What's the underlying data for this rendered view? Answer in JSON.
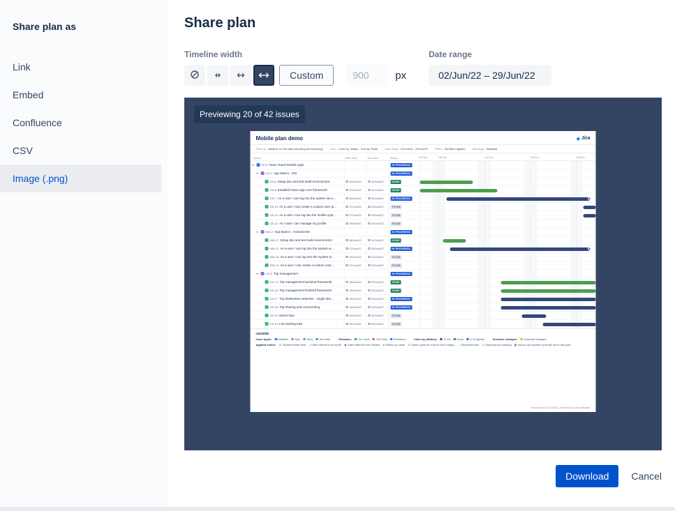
{
  "colors": {
    "accent": "#0052cc",
    "preview_background": "#344563",
    "sidebar_selected_text": "#0052cc"
  },
  "sidebar": {
    "title": "Share plan as",
    "items": [
      {
        "label": "Link",
        "selected": false
      },
      {
        "label": "Embed",
        "selected": false
      },
      {
        "label": "Confluence",
        "selected": false
      },
      {
        "label": "CSV",
        "selected": false
      },
      {
        "label": "Image (.png)",
        "selected": true
      }
    ]
  },
  "header": {
    "title": "Share plan"
  },
  "controls": {
    "timeline_width": {
      "label": "Timeline width",
      "options": [
        "no-width",
        "small-width",
        "medium-width",
        "large-width"
      ],
      "selected_index": 3,
      "custom_label": "Custom",
      "width_placeholder": "900",
      "unit": "px"
    },
    "date_range": {
      "label": "Date range",
      "value": "02/Jun/22 – 29/Jun/22"
    }
  },
  "preview": {
    "badge": "Previewing 20 of 42 issues"
  },
  "plan": {
    "title": "Mobile plan demo",
    "brand": "Jira",
    "meta": [
      {
        "label": "Filter by:",
        "value": "Initiative to Sub-task (Showing full hierarchy)"
      },
      {
        "label": "View:",
        "value": "Color by: Status · Sort by: Rank"
      },
      {
        "label": "Date range:",
        "value": "02/Jun/22 - 29/Jun/22"
      },
      {
        "label": "Filters:",
        "value": "No filters applied"
      },
      {
        "label": "Warnings:",
        "value": "Disabled"
      }
    ],
    "columns": [
      "Scope",
      "Start date",
      "Due date",
      "Status"
    ],
    "ticks": [
      {
        "t": "02/Jun",
        "p": 0
      },
      {
        "t": "05/Jun",
        "p": 11
      },
      {
        "t": "12/Jun",
        "p": 37
      },
      {
        "t": "19/Jun",
        "p": 63
      },
      {
        "t": "26/Jun",
        "p": 89
      }
    ],
    "colors": {
      "bar_done": "#4d9e50",
      "bar_progress": "#33477b",
      "chip_done": "#1f845a",
      "chip_progress": "#1d5bd6",
      "chip_todo_bg": "#dfe1e6",
      "chip_todo_text": "#44546f",
      "type_initiative": "#2684ff",
      "type_epic": "#8777d9",
      "type_story": "#36b37e"
    },
    "rows": [
      {
        "lvl": 0,
        "exp": true,
        "type": "#2684ff",
        "key": "SP-8",
        "sum": "Team Travel Mobile Apps",
        "start": "",
        "due": "",
        "status": "IN PROGRESS",
        "bar": null
      },
      {
        "lvl": 1,
        "exp": true,
        "type": "#8777d9",
        "key": "GS-4",
        "sum": "App basics - iOS",
        "start": "",
        "due": "",
        "status": "IN PROGRESS",
        "bar": null
      },
      {
        "lvl": 2,
        "exp": false,
        "type": "#36b37e",
        "key": "GS-6",
        "sum": "Setup dev and test build environment",
        "start": "02/Jun/22",
        "due": "10/Jun/22",
        "status": "DONE",
        "bar": {
          "s": 0,
          "w": 30,
          "c": "green"
        }
      },
      {
        "lvl": 2,
        "exp": false,
        "type": "#36b37e",
        "key": "GS-8",
        "sum": "Establish basic app core framework",
        "start": "02/Jun/22",
        "due": "14/Jun/22",
        "status": "DONE",
        "bar": {
          "s": 0,
          "w": 44,
          "c": "green"
        }
      },
      {
        "lvl": 2,
        "exp": false,
        "type": "#36b37e",
        "key": "GS-7",
        "sum": "As a user I can log into the system via e...",
        "start": "06/Jun/22",
        "due": "28/Jun/22",
        "status": "IN PROGRESS",
        "bar": {
          "s": 15,
          "w": 82,
          "c": "navy",
          "d": true
        }
      },
      {
        "lvl": 2,
        "exp": false,
        "type": "#36b37e",
        "key": "GS-15",
        "sum": "As a user I can create a custom user pr...",
        "start": "27/Jun/22",
        "due": "29/Jun/22",
        "status": "TO DO",
        "bar": {
          "s": 93,
          "w": 7,
          "c": "navy"
        }
      },
      {
        "lvl": 2,
        "exp": false,
        "type": "#36b37e",
        "key": "GS-10",
        "sum": "As a user I can log into the mobile syst...",
        "start": "27/Jun/22",
        "due": "29/Jun/22",
        "status": "TO DO",
        "bar": {
          "s": 93,
          "w": 7,
          "c": "navy"
        }
      },
      {
        "lvl": 2,
        "exp": false,
        "type": "#36b37e",
        "key": "GS-12",
        "sum": "As I user I can manage my profile",
        "start": "29/Jun/22",
        "due": "29/Jun/22",
        "status": "TO DO",
        "bar": null
      },
      {
        "lvl": 1,
        "exp": true,
        "type": "#8777d9",
        "key": "K06-2",
        "sum": "App Basics - Android test",
        "start": "",
        "due": "",
        "status": "IN PROGRESS",
        "bar": null
      },
      {
        "lvl": 2,
        "exp": false,
        "type": "#36b37e",
        "key": "K06-17",
        "sum": "Setup dev and test build environment",
        "start": "06/Jun/22",
        "due": "10/Jun/22",
        "status": "DONE",
        "bar": {
          "s": 13,
          "w": 13,
          "c": "green"
        }
      },
      {
        "lvl": 2,
        "exp": false,
        "type": "#36b37e",
        "key": "K06-11",
        "sum": "As a user I can log into the system w...",
        "start": "07/Jun/22",
        "due": "28/Jun/22",
        "status": "IN PROGRESS",
        "bar": {
          "s": 17,
          "w": 80,
          "c": "navy",
          "d": true
        }
      },
      {
        "lvl": 2,
        "exp": false,
        "type": "#36b37e",
        "key": "K06-16",
        "sum": "As a user I can log into the system w...",
        "start": "15/Jun/22",
        "due": "22/Jun/22",
        "status": "TO DO",
        "bar": null
      },
      {
        "lvl": 2,
        "exp": false,
        "type": "#36b37e",
        "key": "K06-14",
        "sum": "As a user I can create a custom user...",
        "start": "27/Jun/22",
        "due": "29/Jun/22",
        "status": "TO DO",
        "bar": null
      },
      {
        "lvl": 1,
        "exp": true,
        "type": "#8777d9",
        "key": "GS-5",
        "sum": "Trip management",
        "start": "",
        "due": "",
        "status": "IN PROGRESS",
        "bar": null
      },
      {
        "lvl": 2,
        "exp": false,
        "type": "#36b37e",
        "key": "GS-14",
        "sum": "Trip management backend framework",
        "start": "16/Jun/22",
        "due": "29/Jun/22",
        "status": "DONE",
        "bar": {
          "s": 46,
          "w": 54,
          "c": "green"
        }
      },
      {
        "lvl": 2,
        "exp": false,
        "type": "#36b37e",
        "key": "GS-18",
        "sum": "Trip management frontend framework",
        "start": "16/Jun/22",
        "due": "29/Jun/22",
        "status": "DONE",
        "bar": {
          "s": 46,
          "w": 54,
          "c": "green"
        }
      },
      {
        "lvl": 2,
        "exp": false,
        "type": "#36b37e",
        "key": "GS-17",
        "sum": "Trip destination selection - single des...",
        "start": "16/Jun/22",
        "due": "29/Jun/22",
        "status": "IN PROGRESS",
        "bar": {
          "s": 46,
          "w": 54,
          "c": "navy"
        }
      },
      {
        "lvl": 2,
        "exp": false,
        "type": "#36b37e",
        "key": "GS-20",
        "sum": "Trip sharing and commenting",
        "start": "16/Jun/22",
        "due": "29/Jun/22",
        "status": "IN PROGRESS",
        "bar": {
          "s": 46,
          "w": 54,
          "c": "navy"
        }
      },
      {
        "lvl": 2,
        "exp": false,
        "type": "#36b37e",
        "key": "GS-22",
        "sum": "Name trips",
        "start": "20/Jun/22",
        "due": "24/Jun/22",
        "status": "TO DO",
        "bar": {
          "s": 58,
          "w": 14,
          "c": "navy"
        }
      },
      {
        "lvl": 2,
        "exp": false,
        "type": "#36b37e",
        "key": "GS-19",
        "sum": "List existing trips",
        "start": "24/Jun/22",
        "due": "29/Jun/22",
        "status": "TO DO",
        "bar": {
          "s": 70,
          "w": 30,
          "c": "navy"
        }
      }
    ],
    "legend": {
      "title": "LEGEND",
      "groups": [
        {
          "label": "Issue types:",
          "items": [
            {
              "t": "Initiative",
              "c": "#2684ff",
              "s": "sq"
            },
            {
              "t": "Epic",
              "c": "#8777d9",
              "s": "sq"
            },
            {
              "t": "Story",
              "c": "#36b37e",
              "s": "sq"
            },
            {
              "t": "Sub-task",
              "c": "#00a3bf",
              "s": "sq"
            }
          ]
        },
        {
          "label": "Releases:",
          "items": [
            {
              "t": "On-Track",
              "c": "#36b37e",
              "s": "ci"
            },
            {
              "t": "Off-Track",
              "c": "#de350b",
              "s": "ci"
            },
            {
              "t": "Released",
              "c": "#2684ff",
              "s": "ci"
            }
          ]
        },
        {
          "label": "Color by (Status):",
          "items": [
            {
              "t": "To Do",
              "c": "#344563",
              "s": "sq"
            },
            {
              "t": "Done",
              "c": "#4d9e50",
              "s": "sq"
            },
            {
              "t": "In Progress",
              "c": "#2f62c4",
              "s": "sq"
            }
          ]
        },
        {
          "label": "Scenario changes:",
          "items": [
            {
              "t": "Unsaved changes",
              "c": "#ffab00",
              "s": "sq"
            }
          ]
        },
        {
          "label": "Applied colors:",
          "items": [
            {
              "t": "Start/end date limit",
              "g": "◎"
            },
            {
              "t": "Date inferred from sprint",
              "g": "○"
            },
            {
              "t": "Date inferred from release",
              "g": "◉"
            },
            {
              "t": "Rolled-up value",
              "g": "●"
            },
            {
              "t": "Dates cycle (to current view range)",
              "g": "⊘"
            },
            {
              "t": "Dependencies",
              "g": "→"
            },
            {
              "t": "Dependency warning",
              "g": "⚠"
            },
            {
              "t": "Issues and sprints currently not in this plan",
              "g": "▦"
            }
          ]
        }
      ]
    },
    "footer": "Exported on 02/Jun/22 | Powered by Jira Software"
  },
  "footer": {
    "download_label": "Download",
    "cancel_label": "Cancel"
  }
}
